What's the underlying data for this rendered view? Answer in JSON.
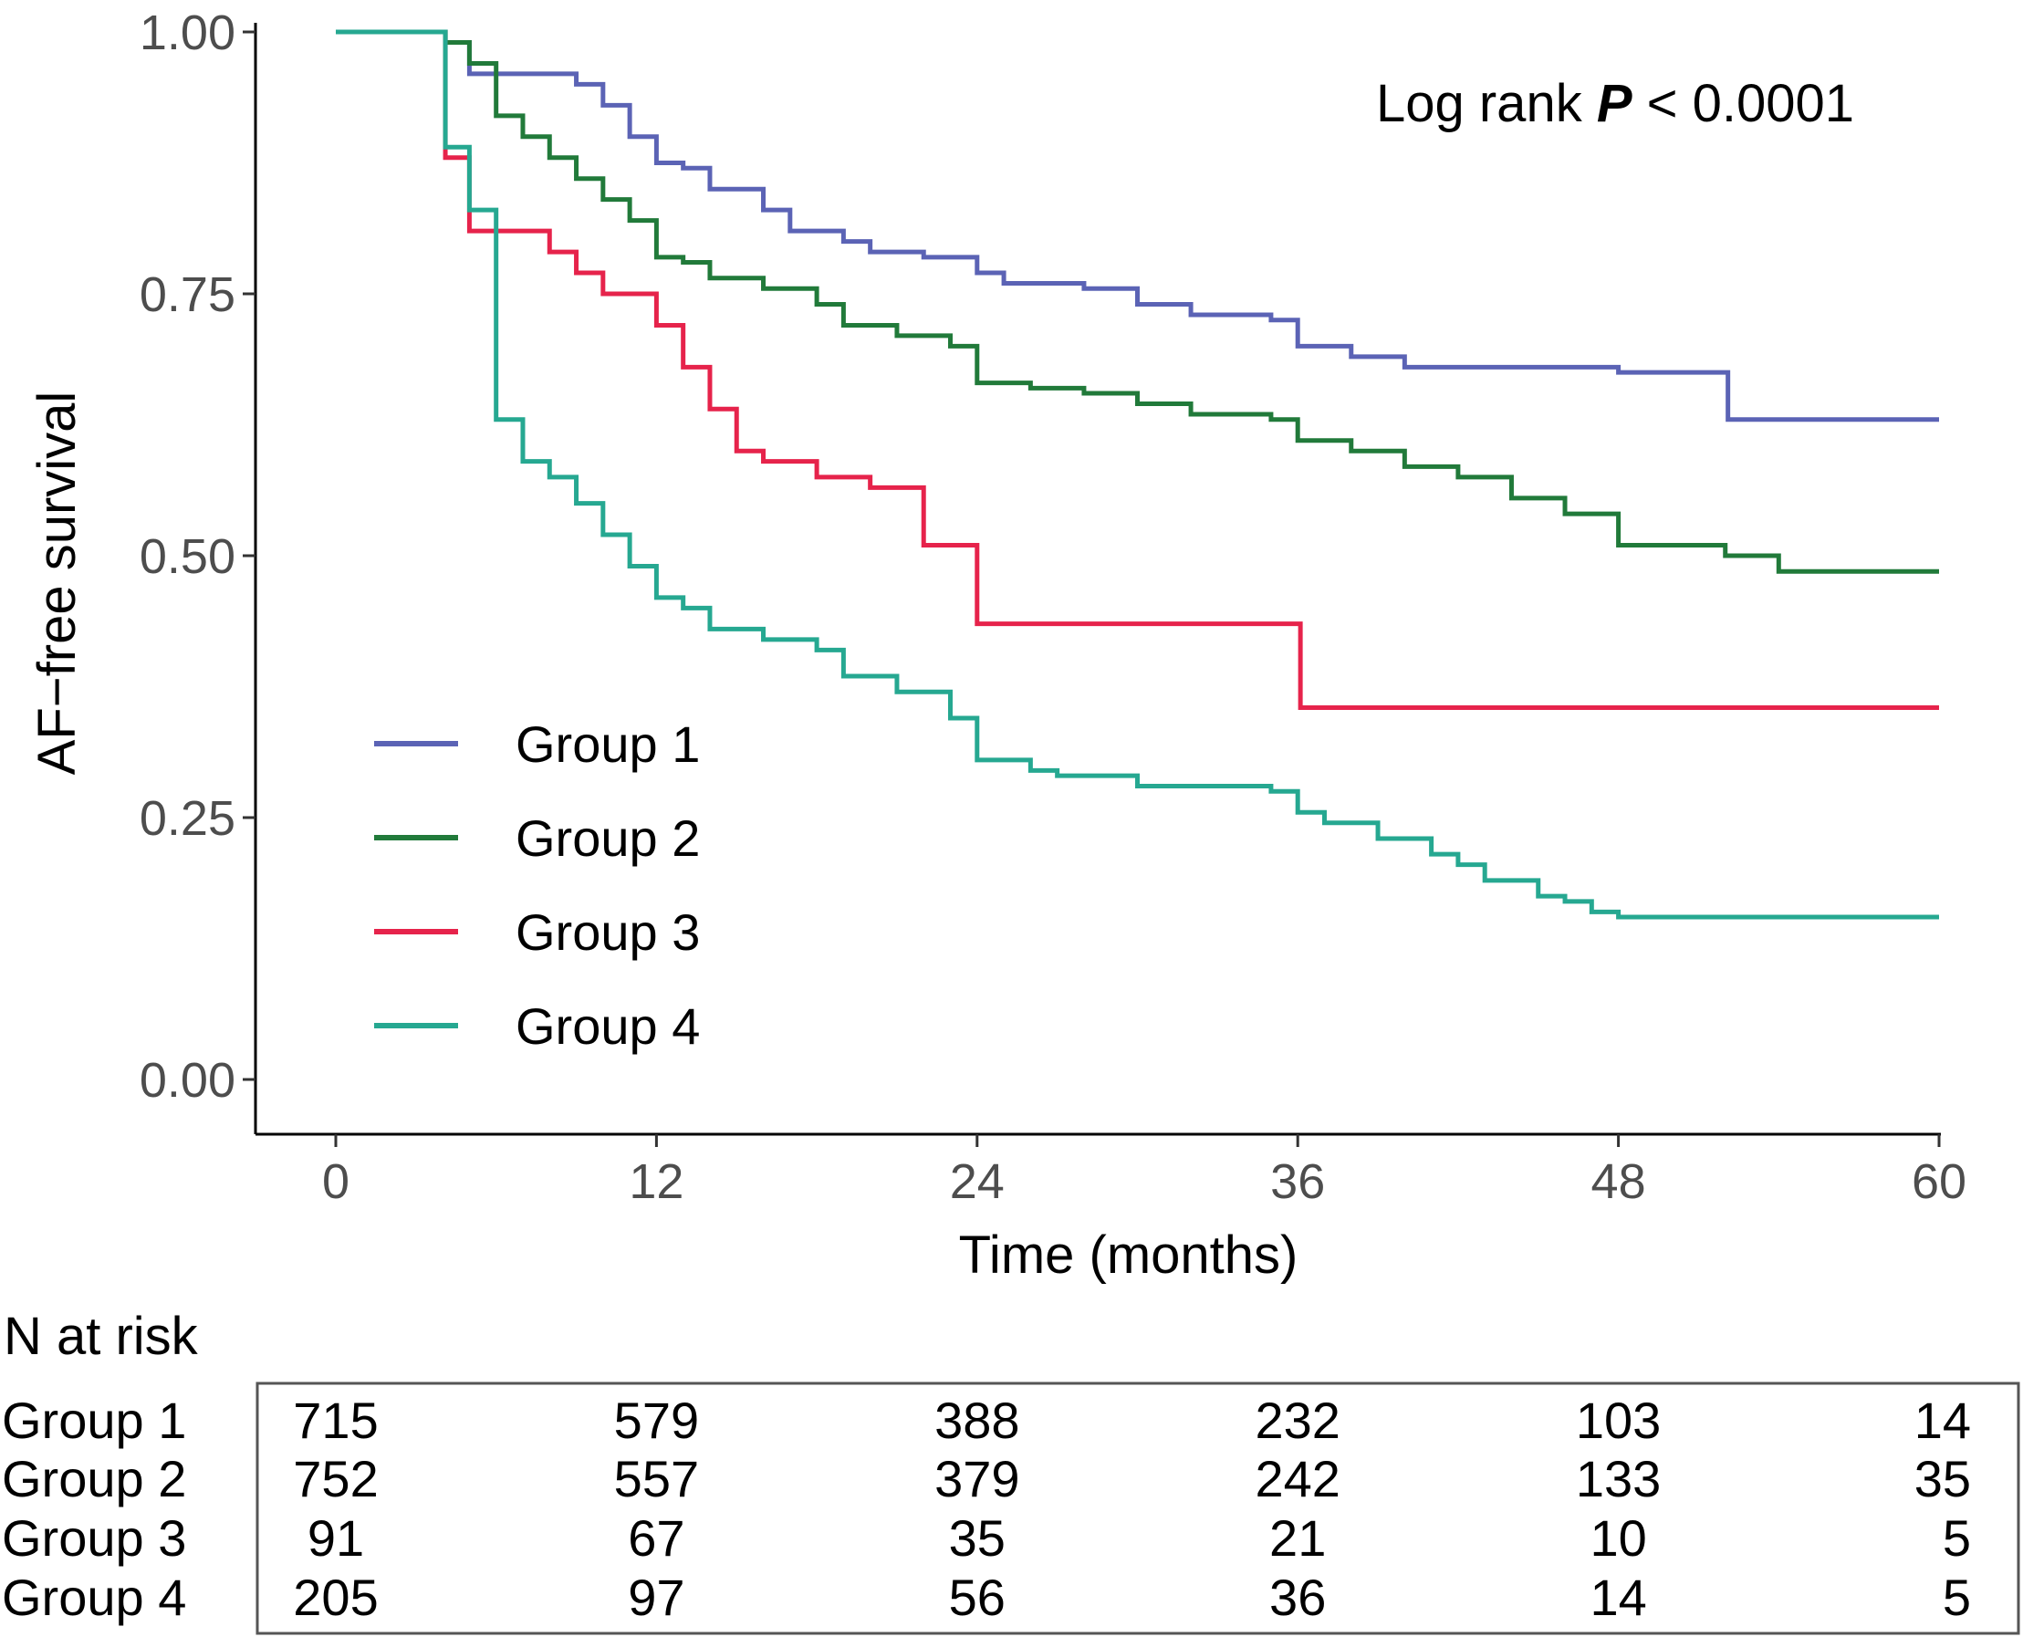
{
  "chart_data": {
    "type": "line",
    "subtype": "kaplan-meier step",
    "title": "",
    "xlabel": "Time (months)",
    "ylabel": "AF−free survival",
    "xlim": [
      0,
      60
    ],
    "ylim": [
      0,
      1
    ],
    "xticks": [
      "0",
      "12",
      "24",
      "36",
      "48",
      "60"
    ],
    "yticks": [
      "0.00",
      "0.25",
      "0.50",
      "0.75",
      "1.00"
    ],
    "legend_placement": "middle-left",
    "annotation": {
      "prefix": "Log rank ",
      "p": "P",
      "suffix": " < 0.0001"
    },
    "series": [
      {
        "name": "Group 1",
        "color": "#5b63b5",
        "points": [
          [
            0,
            1.0
          ],
          [
            4,
            1.0
          ],
          [
            4.1,
            0.99
          ],
          [
            5,
            0.96
          ],
          [
            8,
            0.96
          ],
          [
            9,
            0.95
          ],
          [
            10,
            0.93
          ],
          [
            11,
            0.9
          ],
          [
            12,
            0.875
          ],
          [
            13,
            0.87
          ],
          [
            14,
            0.85
          ],
          [
            16,
            0.83
          ],
          [
            17,
            0.81
          ],
          [
            19,
            0.8
          ],
          [
            20,
            0.79
          ],
          [
            22,
            0.785
          ],
          [
            24,
            0.77
          ],
          [
            25,
            0.76
          ],
          [
            28,
            0.755
          ],
          [
            30,
            0.74
          ],
          [
            32,
            0.73
          ],
          [
            35,
            0.725
          ],
          [
            36,
            0.7
          ],
          [
            38,
            0.69
          ],
          [
            40,
            0.68
          ],
          [
            46,
            0.68
          ],
          [
            48,
            0.675
          ],
          [
            52,
            0.675
          ],
          [
            52.1,
            0.63
          ],
          [
            60,
            0.63
          ]
        ]
      },
      {
        "name": "Group 2",
        "color": "#217a3a",
        "points": [
          [
            0,
            1.0
          ],
          [
            4,
            1.0
          ],
          [
            4.1,
            0.99
          ],
          [
            5,
            0.97
          ],
          [
            6,
            0.92
          ],
          [
            7,
            0.9
          ],
          [
            8,
            0.88
          ],
          [
            9,
            0.86
          ],
          [
            10,
            0.84
          ],
          [
            11,
            0.82
          ],
          [
            12,
            0.785
          ],
          [
            13,
            0.78
          ],
          [
            14,
            0.765
          ],
          [
            16,
            0.755
          ],
          [
            18,
            0.74
          ],
          [
            19,
            0.72
          ],
          [
            21,
            0.71
          ],
          [
            23,
            0.7
          ],
          [
            24,
            0.665
          ],
          [
            26,
            0.66
          ],
          [
            28,
            0.655
          ],
          [
            30,
            0.645
          ],
          [
            32,
            0.635
          ],
          [
            35,
            0.63
          ],
          [
            36,
            0.61
          ],
          [
            38,
            0.6
          ],
          [
            40,
            0.585
          ],
          [
            42,
            0.575
          ],
          [
            44,
            0.555
          ],
          [
            46,
            0.54
          ],
          [
            48,
            0.51
          ],
          [
            52,
            0.5
          ],
          [
            54,
            0.485
          ],
          [
            60,
            0.485
          ]
        ]
      },
      {
        "name": "Group 3",
        "color": "#e6234b",
        "points": [
          [
            0,
            1.0
          ],
          [
            4,
            1.0
          ],
          [
            4.1,
            0.88
          ],
          [
            5,
            0.81
          ],
          [
            8,
            0.79
          ],
          [
            9,
            0.77
          ],
          [
            10,
            0.75
          ],
          [
            12,
            0.72
          ],
          [
            13,
            0.68
          ],
          [
            14,
            0.64
          ],
          [
            15,
            0.6
          ],
          [
            16,
            0.59
          ],
          [
            18,
            0.575
          ],
          [
            20,
            0.565
          ],
          [
            22,
            0.51
          ],
          [
            24,
            0.435
          ],
          [
            36,
            0.435
          ],
          [
            36.1,
            0.355
          ],
          [
            60,
            0.355
          ]
        ]
      },
      {
        "name": "Group 4",
        "color": "#26a891",
        "points": [
          [
            0,
            1.0
          ],
          [
            4,
            1.0
          ],
          [
            4.1,
            0.89
          ],
          [
            5,
            0.83
          ],
          [
            6,
            0.63
          ],
          [
            7,
            0.59
          ],
          [
            8,
            0.575
          ],
          [
            9,
            0.55
          ],
          [
            10,
            0.52
          ],
          [
            11,
            0.49
          ],
          [
            12,
            0.46
          ],
          [
            13,
            0.45
          ],
          [
            14,
            0.43
          ],
          [
            16,
            0.42
          ],
          [
            18,
            0.41
          ],
          [
            19,
            0.385
          ],
          [
            21,
            0.37
          ],
          [
            23,
            0.345
          ],
          [
            24,
            0.305
          ],
          [
            26,
            0.295
          ],
          [
            27,
            0.29
          ],
          [
            30,
            0.28
          ],
          [
            35,
            0.275
          ],
          [
            36,
            0.255
          ],
          [
            37,
            0.245
          ],
          [
            39,
            0.23
          ],
          [
            41,
            0.215
          ],
          [
            42,
            0.205
          ],
          [
            43,
            0.19
          ],
          [
            45,
            0.175
          ],
          [
            46,
            0.17
          ],
          [
            47,
            0.16
          ],
          [
            48,
            0.155
          ],
          [
            60,
            0.155
          ]
        ]
      }
    ],
    "risk_table": {
      "title": "N at risk",
      "times": [
        0,
        12,
        24,
        36,
        48,
        60
      ],
      "rows": [
        {
          "label": "Group 1",
          "values": [
            "715",
            "579",
            "388",
            "232",
            "103",
            "14"
          ]
        },
        {
          "label": "Group 2",
          "values": [
            "752",
            "557",
            "379",
            "242",
            "133",
            "35"
          ]
        },
        {
          "label": "Group 3",
          "values": [
            "91",
            "67",
            "35",
            "21",
            "10",
            "5"
          ]
        },
        {
          "label": "Group 4",
          "values": [
            "205",
            "97",
            "56",
            "36",
            "14",
            "5"
          ]
        }
      ]
    }
  }
}
